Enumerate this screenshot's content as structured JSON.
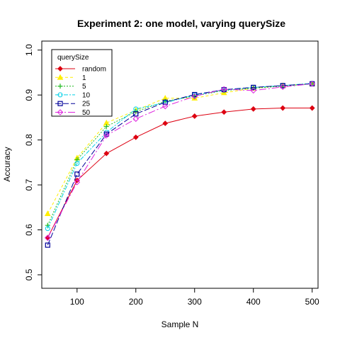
{
  "chart_data": {
    "type": "line",
    "title": "Experiment 2: one model, varying querySize",
    "xlabel": "Sample N",
    "ylabel": "Accuracy",
    "x": [
      50,
      100,
      150,
      200,
      250,
      300,
      350,
      400,
      450,
      500
    ],
    "xlim": [
      50,
      500
    ],
    "ylim": [
      0.5,
      1.0
    ],
    "xticks": [
      100,
      200,
      300,
      400,
      500
    ],
    "yticks": [
      0.5,
      0.6,
      0.7,
      0.8,
      0.9,
      1.0
    ],
    "grid": false,
    "legend": {
      "title": "querySize",
      "position": "top-left"
    },
    "series": [
      {
        "name": "random",
        "color": "#dd0011",
        "dash": "none",
        "marker": "diamond-filled",
        "values": [
          0.583,
          0.71,
          0.77,
          0.806,
          0.837,
          0.853,
          0.862,
          0.869,
          0.871,
          0.871
        ]
      },
      {
        "name": "1",
        "color": "#ffee00",
        "dash": "4,3",
        "marker": "triangle-filled",
        "values": [
          0.636,
          0.76,
          0.838,
          0.866,
          0.893,
          0.893,
          0.905,
          0.915,
          0.921,
          0.925
        ]
      },
      {
        "name": "5",
        "color": "#22bb22",
        "dash": "2,2",
        "marker": "plus",
        "values": [
          0.61,
          0.756,
          0.83,
          0.863,
          0.886,
          0.898,
          0.91,
          0.915,
          0.92,
          0.925
        ]
      },
      {
        "name": "10",
        "color": "#00d0e8",
        "dash": "6,2,2,2",
        "marker": "circle",
        "values": [
          0.603,
          0.748,
          0.817,
          0.869,
          0.883,
          0.9,
          0.911,
          0.917,
          0.921,
          0.926
        ]
      },
      {
        "name": "25",
        "color": "#000099",
        "dash": "8,3",
        "marker": "square",
        "values": [
          0.566,
          0.724,
          0.813,
          0.858,
          0.884,
          0.901,
          0.912,
          0.917,
          0.921,
          0.925
        ]
      },
      {
        "name": "50",
        "color": "#dd22dd",
        "dash": "10,3,2,3",
        "marker": "diamond",
        "values": [
          0.582,
          0.706,
          0.81,
          0.847,
          0.875,
          0.897,
          0.913,
          0.91,
          0.918,
          0.925
        ]
      }
    ]
  }
}
